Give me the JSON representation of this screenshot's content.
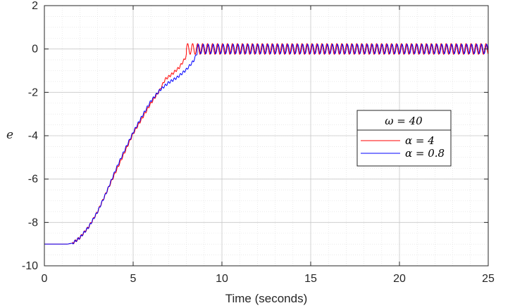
{
  "chart_data": {
    "type": "line",
    "xlabel": "Time (seconds)",
    "ylabel": "e",
    "xlim": [
      0,
      25
    ],
    "ylim": [
      -10,
      2
    ],
    "xticks": [
      0,
      5,
      10,
      15,
      20,
      25
    ],
    "yticks": [
      -10,
      -8,
      -6,
      -4,
      -2,
      0,
      2
    ],
    "grid": "major and minor",
    "legend": {
      "title": "ω = 40",
      "location": "center-right",
      "entries": [
        "α = 4",
        "α = 0.8"
      ]
    },
    "series": [
      {
        "name": "α = 4",
        "color": "#ff0000",
        "points": [
          [
            0,
            -9
          ],
          [
            1.3,
            -9
          ],
          [
            1.6,
            -8.95
          ],
          [
            2,
            -8.7
          ],
          [
            2.5,
            -8.2
          ],
          [
            3,
            -7.5
          ],
          [
            3.5,
            -6.6
          ],
          [
            4,
            -5.7
          ],
          [
            4.5,
            -4.8
          ],
          [
            5,
            -3.9
          ],
          [
            5.5,
            -3.2
          ],
          [
            6,
            -2.5
          ],
          [
            6.5,
            -1.9
          ],
          [
            6.8,
            -1.4
          ],
          [
            7.2,
            -1.15
          ],
          [
            7.6,
            -0.85
          ],
          [
            7.95,
            -0.4
          ],
          [
            8.1,
            0.05
          ]
        ],
        "oscillation": {
          "x_start": 8.0,
          "x_end": 25,
          "center": 0.0,
          "amplitude": 0.25,
          "period": 0.28
        }
      },
      {
        "name": "α = 0.8",
        "color": "#0000ff",
        "points": [
          [
            0,
            -9
          ],
          [
            1.3,
            -9
          ],
          [
            1.6,
            -8.95
          ],
          [
            2,
            -8.7
          ],
          [
            2.5,
            -8.2
          ],
          [
            3,
            -7.5
          ],
          [
            3.5,
            -6.6
          ],
          [
            4,
            -5.6
          ],
          [
            4.5,
            -4.7
          ],
          [
            5,
            -3.85
          ],
          [
            5.5,
            -3.1
          ],
          [
            6,
            -2.4
          ],
          [
            6.5,
            -1.9
          ],
          [
            7,
            -1.55
          ],
          [
            7.5,
            -1.3
          ],
          [
            8,
            -0.95
          ],
          [
            8.4,
            -0.55
          ],
          [
            8.7,
            0.0
          ]
        ],
        "oscillation": {
          "x_start": 8.6,
          "x_end": 25,
          "center": 0.0,
          "amplitude": 0.22,
          "period": 0.28
        }
      }
    ]
  }
}
